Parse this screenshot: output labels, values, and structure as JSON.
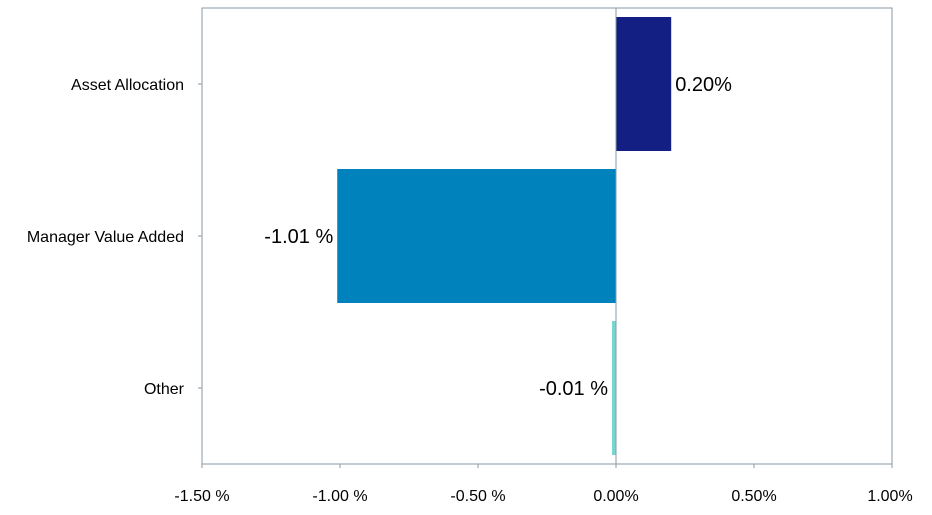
{
  "chart_data": {
    "type": "bar",
    "orientation": "horizontal",
    "categories": [
      "Asset Allocation",
      "Manager Value Added",
      "Other"
    ],
    "values": [
      0.2,
      -1.01,
      -0.01
    ],
    "data_labels": [
      "0.20%",
      "-1.01 %",
      "-0.01 %"
    ],
    "colors": [
      "#131f82",
      "#0083bd",
      "#76d7d3"
    ],
    "xlim": [
      -1.5,
      1.0
    ],
    "xticks": [
      -1.5,
      -1.0,
      -0.5,
      0.0,
      0.5,
      1.0
    ],
    "xtick_labels": [
      "-1.50 %",
      "-1.00 %",
      "-0.50 %",
      "0.00%",
      "0.50%",
      "1.00%"
    ],
    "grid": false,
    "legend": "none"
  }
}
